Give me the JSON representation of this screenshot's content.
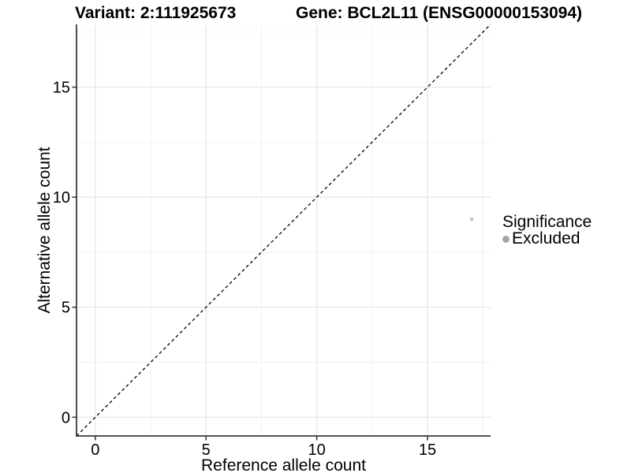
{
  "chart_data": {
    "type": "scatter",
    "title_left": "Variant: 2:111925673",
    "title_right": "Gene: BCL2L11 (ENSG00000153094)",
    "xlabel": "Reference allele count",
    "ylabel": "Alternative allele count",
    "xlim": [
      -0.85,
      17.85
    ],
    "ylim": [
      -0.85,
      17.85
    ],
    "xticks": [
      0,
      5,
      10,
      15
    ],
    "yticks": [
      0,
      5,
      10,
      15
    ],
    "x_minor": [
      2.5,
      7.5,
      12.5,
      17.5
    ],
    "y_minor": [
      2.5,
      7.5,
      12.5,
      17.5
    ],
    "grid": "major and minor gridlines, light grey on white panel",
    "legend_position": "right",
    "points": [
      {
        "x": 17,
        "y": 9,
        "series": "Excluded"
      }
    ],
    "identity_line": {
      "slope": 1,
      "intercept": 0,
      "style": "dashed",
      "color": "#000000"
    },
    "legend": {
      "title": "Significance",
      "items": [
        {
          "label": "Excluded",
          "marker": "circle",
          "color": "#a6a6a6"
        }
      ]
    },
    "colors": {
      "point": "#c3c3c3",
      "grid_major": "#e5e5e5",
      "grid_minor": "#f2f2f2",
      "axis": "#3a3a3a",
      "tick_text": "#000000",
      "background": "#ffffff"
    }
  }
}
